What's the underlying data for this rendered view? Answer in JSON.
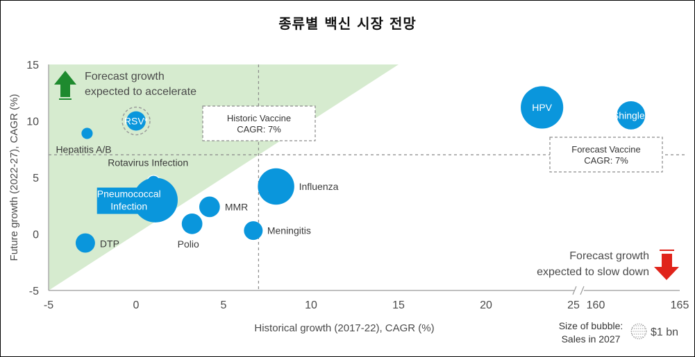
{
  "chart_data": {
    "type": "scatter",
    "title": "종류별 백신 시장 전망",
    "xlabel": "Historical growth (2017-22), CAGR (%)",
    "ylabel": "Future growth (2022-27), CAGR (%)",
    "xlim": [
      -5,
      165
    ],
    "x_break": [
      25,
      160
    ],
    "ylim": [
      -5,
      15
    ],
    "x_ticks": [
      "-5",
      "0",
      "5",
      "10",
      "15",
      "20",
      "25",
      "160",
      "165"
    ],
    "y_ticks": [
      "15",
      "10",
      "5",
      "0",
      "-5"
    ],
    "points": [
      {
        "label": "RSV*",
        "x": 0,
        "y": 10,
        "size": 1.5,
        "dashed_ring": true
      },
      {
        "label": "Hepatitis A/B",
        "x": -2.8,
        "y": 8.9,
        "size": 0.5
      },
      {
        "label": "Rotavirus Infection",
        "x": 1,
        "y": 4.6,
        "size": 0.7
      },
      {
        "label": "Pneumococcal Infection",
        "x": 1.1,
        "y": 3.0,
        "size": 8
      },
      {
        "label": "MMR",
        "x": 4.2,
        "y": 2.4,
        "size": 1.7
      },
      {
        "label": "Polio",
        "x": 3.2,
        "y": 0.9,
        "size": 1.7
      },
      {
        "label": "Influenza",
        "x": 8.0,
        "y": 4.2,
        "size": 5.3
      },
      {
        "label": "Meningitis",
        "x": 6.7,
        "y": 0.3,
        "size": 1.4
      },
      {
        "label": "DTP",
        "x": -2.9,
        "y": -0.8,
        "size": 1.5
      },
      {
        "label": "HPV",
        "x": 23.2,
        "y": 11.2,
        "size": 7.2
      },
      {
        "label": "Shingles",
        "x": 162.1,
        "y": 10.5,
        "size": 3.2
      }
    ],
    "reference_lines": {
      "historic_vaccine_cagr": {
        "label": "Historic Vaccine\nCAGR: 7%",
        "x": 7
      },
      "forecast_vaccine_cagr": {
        "label": "Forecast Vaccine\nCAGR: 7%",
        "y": 7
      }
    },
    "annotations": {
      "accelerate": "Forecast growth\nexpected to accelerate",
      "slow_down": "Forecast growth\nexpected to slow down"
    },
    "size_legend": {
      "caption": "Size of bubble:\nSales in 2027",
      "value": "$1 bn"
    },
    "colors": {
      "bubble": "#0a96dc",
      "zone": "#d6ebcf",
      "up_arrow": "#1e8a2e",
      "down_arrow": "#e0241b",
      "dashed": "#8a8a8a"
    }
  }
}
